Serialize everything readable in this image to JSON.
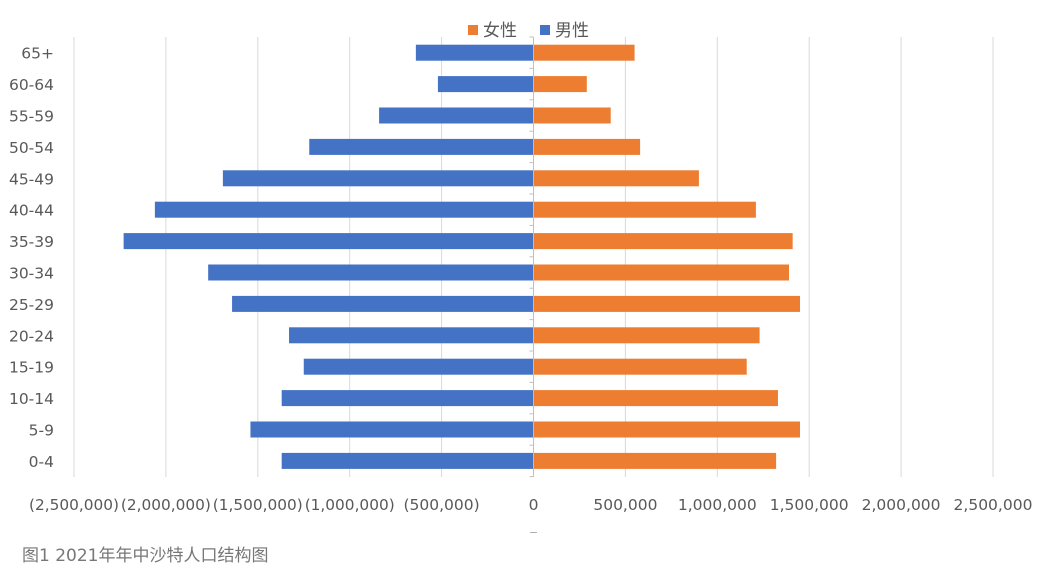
{
  "chart_data": {
    "type": "bar",
    "orientation": "horizontal",
    "title": "",
    "xlabel": "",
    "ylabel": "",
    "categories": [
      "0-4",
      "5-9",
      "10-14",
      "15-19",
      "20-24",
      "25-29",
      "30-34",
      "35-39",
      "40-44",
      "45-49",
      "50-54",
      "55-59",
      "60-64",
      "65+"
    ],
    "series": [
      {
        "name": "女性",
        "color": "#ED7D31",
        "values": [
          1320000,
          1450000,
          1330000,
          1160000,
          1230000,
          1450000,
          1390000,
          1410000,
          1210000,
          900000,
          580000,
          420000,
          290000,
          550000
        ]
      },
      {
        "name": "男性",
        "color": "#4472C4",
        "values": [
          -1370000,
          -1540000,
          -1370000,
          -1250000,
          -1330000,
          -1640000,
          -1770000,
          -2230000,
          -2060000,
          -1690000,
          -1220000,
          -840000,
          -520000,
          -640000
        ]
      }
    ],
    "xlim": [
      -2500000,
      2500000
    ],
    "xticks": [
      -2500000,
      -2000000,
      -1500000,
      -1000000,
      -500000,
      0,
      500000,
      1000000,
      1500000,
      2000000,
      2500000
    ],
    "xtick_labels": [
      "(2,500,000)",
      "(2,000,000)",
      "(1,500,000)",
      "(1,000,000)",
      "(500,000)",
      "0",
      "500,000",
      "1,000,000",
      "1,500,000",
      "2,000,000",
      "2,500,000"
    ],
    "grid": "vertical",
    "legend": "top-center",
    "stray_mark": "_"
  },
  "caption": "图1 2021年年中沙特人口结构图",
  "colors": {
    "grid": "#D9D9D9",
    "axis": "#BFBFBF",
    "text": "#595959",
    "caption": "#777777"
  }
}
